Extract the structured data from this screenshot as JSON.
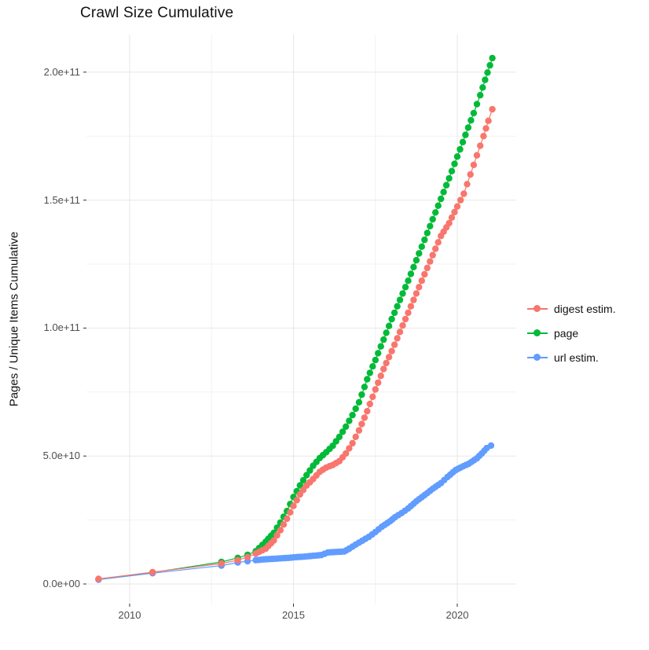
{
  "title": "Crawl Size Cumulative",
  "chart_data": {
    "type": "scatter",
    "title": "Crawl Size Cumulative",
    "xlabel": "",
    "ylabel": "Pages / Unique Items Cumulative",
    "value_unit": "items, stored as multiples of 1e9 (value 205.5 = 2.055e+11)",
    "x_range_years": [
      2008.68,
      2021.8
    ],
    "y_range_e9": [
      -7.7,
      214.4
    ],
    "grid": {
      "major_color": "#e7e7e7",
      "minor_color": "#f2f2f2",
      "background": "#ffffff"
    },
    "tick_color": "#333333",
    "tick_label_color": "#4d4d4d",
    "x_ticks": [
      {
        "label": "2010",
        "year": 2010
      },
      {
        "label": "2015",
        "year": 2015
      },
      {
        "label": "2020",
        "year": 2020
      }
    ],
    "x_minor_ticks_years": [
      2012.5,
      2017.5
    ],
    "y_ticks": [
      {
        "label": "0.0e+00",
        "value_e9": 0
      },
      {
        "label": "5.0e+10",
        "value_e9": 50
      },
      {
        "label": "1.0e+11",
        "value_e9": 100
      },
      {
        "label": "1.5e+11",
        "value_e9": 150
      },
      {
        "label": "2.0e+11",
        "value_e9": 200
      }
    ],
    "y_minor_ticks_e9": [
      25,
      75,
      125,
      175
    ],
    "legend_position": "right",
    "dot_spacing_years": 0.088,
    "sparse_until_year": 2013.8,
    "series": [
      {
        "name": "digest estim.",
        "color": "#F8766D",
        "points": [
          [
            2009.05,
            2.0
          ],
          [
            2010.7,
            4.6
          ],
          [
            2012.8,
            8.0
          ],
          [
            2013.3,
            9.3
          ],
          [
            2013.6,
            10.5
          ],
          [
            2013.85,
            11.9
          ],
          [
            2014.15,
            13.8
          ],
          [
            2014.4,
            17.0
          ],
          [
            2014.6,
            21.0
          ],
          [
            2014.8,
            25.5
          ],
          [
            2015.0,
            30.5
          ],
          [
            2015.2,
            35.0
          ],
          [
            2015.4,
            38.5
          ],
          [
            2015.6,
            41.0
          ],
          [
            2015.8,
            43.8
          ],
          [
            2016.0,
            45.5
          ],
          [
            2016.2,
            46.5
          ],
          [
            2016.4,
            48.0
          ],
          [
            2016.6,
            51.0
          ],
          [
            2016.8,
            55.0
          ],
          [
            2017.0,
            60.0
          ],
          [
            2017.25,
            67.5
          ],
          [
            2017.5,
            76.0
          ],
          [
            2017.75,
            84.0
          ],
          [
            2018.0,
            91.0
          ],
          [
            2018.25,
            98.5
          ],
          [
            2018.5,
            106.0
          ],
          [
            2018.75,
            113.5
          ],
          [
            2019.0,
            121.0
          ],
          [
            2019.25,
            128.5
          ],
          [
            2019.5,
            136.0
          ],
          [
            2019.75,
            141.0
          ],
          [
            2020.0,
            147.5
          ],
          [
            2020.2,
            152.5
          ],
          [
            2020.4,
            160.0
          ],
          [
            2020.6,
            167.5
          ],
          [
            2020.8,
            175.0
          ],
          [
            2020.95,
            181.0
          ],
          [
            2021.07,
            185.5
          ]
        ]
      },
      {
        "name": "page",
        "color": "#00BA38",
        "points": [
          [
            2009.05,
            1.8
          ],
          [
            2010.7,
            4.5
          ],
          [
            2012.8,
            8.6
          ],
          [
            2013.3,
            10.2
          ],
          [
            2013.6,
            11.4
          ],
          [
            2013.85,
            12.8
          ],
          [
            2014.15,
            16.5
          ],
          [
            2014.4,
            20.0
          ],
          [
            2014.6,
            24.0
          ],
          [
            2014.8,
            28.5
          ],
          [
            2015.0,
            34.0
          ],
          [
            2015.2,
            38.5
          ],
          [
            2015.4,
            42.5
          ],
          [
            2015.6,
            46.2
          ],
          [
            2015.8,
            49.2
          ],
          [
            2016.0,
            51.5
          ],
          [
            2016.2,
            54.0
          ],
          [
            2016.4,
            57.5
          ],
          [
            2016.6,
            61.5
          ],
          [
            2016.8,
            66.0
          ],
          [
            2017.0,
            71.0
          ],
          [
            2017.25,
            80.0
          ],
          [
            2017.5,
            87.5
          ],
          [
            2017.75,
            95.5
          ],
          [
            2018.0,
            103.5
          ],
          [
            2018.25,
            111.0
          ],
          [
            2018.5,
            118.5
          ],
          [
            2018.75,
            126.5
          ],
          [
            2019.0,
            134.5
          ],
          [
            2019.25,
            142.5
          ],
          [
            2019.5,
            150.5
          ],
          [
            2019.75,
            158.5
          ],
          [
            2020.0,
            167.0
          ],
          [
            2020.25,
            175.5
          ],
          [
            2020.5,
            184.0
          ],
          [
            2020.7,
            191.0
          ],
          [
            2020.85,
            197.0
          ],
          [
            2021.07,
            205.5
          ]
        ]
      },
      {
        "name": "url estim.",
        "color": "#619CFF",
        "points": [
          [
            2009.05,
            1.7
          ],
          [
            2010.7,
            4.2
          ],
          [
            2012.8,
            7.2
          ],
          [
            2013.3,
            8.4
          ],
          [
            2013.6,
            8.9
          ],
          [
            2013.85,
            9.3
          ],
          [
            2014.1,
            9.6
          ],
          [
            2014.35,
            9.8
          ],
          [
            2014.6,
            10.0
          ],
          [
            2014.85,
            10.2
          ],
          [
            2015.1,
            10.5
          ],
          [
            2015.35,
            10.7
          ],
          [
            2015.6,
            11.0
          ],
          [
            2015.85,
            11.3
          ],
          [
            2016.05,
            12.3
          ],
          [
            2016.3,
            12.5
          ],
          [
            2016.55,
            12.7
          ],
          [
            2016.7,
            13.8
          ],
          [
            2016.9,
            15.4
          ],
          [
            2017.1,
            16.9
          ],
          [
            2017.3,
            18.4
          ],
          [
            2017.5,
            20.3
          ],
          [
            2017.7,
            22.4
          ],
          [
            2017.95,
            24.5
          ],
          [
            2018.1,
            26.1
          ],
          [
            2018.3,
            27.7
          ],
          [
            2018.5,
            29.5
          ],
          [
            2018.75,
            32.3
          ],
          [
            2019.0,
            34.7
          ],
          [
            2019.25,
            37.2
          ],
          [
            2019.5,
            39.4
          ],
          [
            2019.7,
            41.8
          ],
          [
            2019.95,
            44.5
          ],
          [
            2020.1,
            45.5
          ],
          [
            2020.35,
            47.0
          ],
          [
            2020.6,
            49.1
          ],
          [
            2020.75,
            51.0
          ],
          [
            2020.9,
            53.1
          ],
          [
            2021.03,
            54.1
          ]
        ]
      }
    ]
  }
}
